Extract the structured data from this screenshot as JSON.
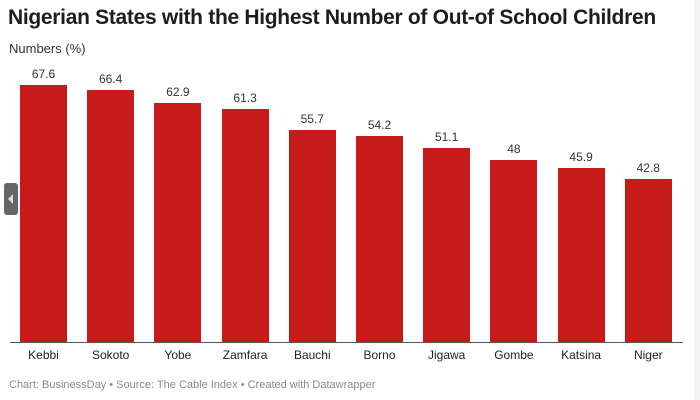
{
  "header": {
    "title": "Nigerian States with the Highest Number of Out-of School Children",
    "ylabel": "Numbers (%)"
  },
  "footer": {
    "text": "Chart: BusinessDay • Source: The Cable Index • Created with Datawrapper"
  },
  "colors": {
    "bar": "#c71b1b",
    "axis": "#555555"
  },
  "chart_data": {
    "type": "bar",
    "title": "Nigerian States with the Highest Number of Out-of School Children",
    "xlabel": "",
    "ylabel": "Numbers (%)",
    "categories": [
      "Kebbi",
      "Sokoto",
      "Yobe",
      "Zamfara",
      "Bauchi",
      "Borno",
      "Jigawa",
      "Gombe",
      "Katsina",
      "Niger"
    ],
    "values": [
      67.6,
      66.4,
      62.9,
      61.3,
      55.7,
      54.2,
      51.1,
      48,
      45.9,
      42.8
    ],
    "value_labels": [
      "67.6",
      "66.4",
      "62.9",
      "61.3",
      "55.7",
      "54.2",
      "51.1",
      "48",
      "45.9",
      "42.8"
    ],
    "ylim": [
      0,
      70
    ],
    "grid": false,
    "legend": "none",
    "data_labels": true
  }
}
